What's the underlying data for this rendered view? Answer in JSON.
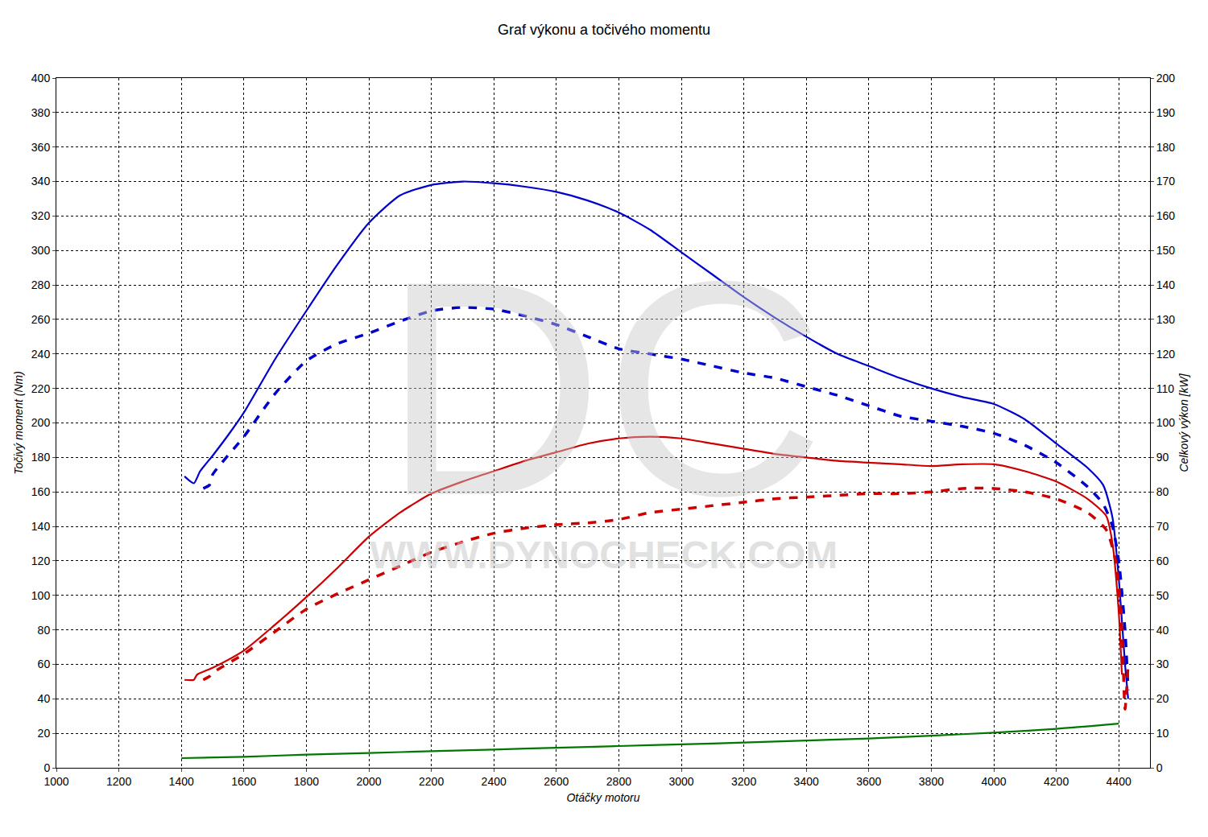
{
  "chart_data": {
    "type": "line",
    "title": "Graf výkonu a točivého momentu",
    "x_label": "Otáčky motoru",
    "y_label": "Točivý moment (Nm)",
    "y2_label": "Celkový výkon [kW]",
    "annotations": [
      "DC",
      "WWW.DYNOCHECK.COM"
    ],
    "xlim": [
      1000,
      4500
    ],
    "xticks": [
      1000,
      1200,
      1400,
      1600,
      1800,
      2000,
      2200,
      2400,
      2600,
      2800,
      3000,
      3200,
      3400,
      3600,
      3800,
      4000,
      4200,
      4400
    ],
    "ylim": [
      0,
      400
    ],
    "yticks": [
      0,
      20,
      40,
      60,
      80,
      100,
      120,
      140,
      160,
      180,
      200,
      220,
      240,
      260,
      280,
      300,
      320,
      340,
      360,
      380,
      400
    ],
    "y2lim": [
      0,
      200
    ],
    "y2ticks": [
      0,
      10,
      20,
      30,
      40,
      50,
      60,
      70,
      80,
      90,
      100,
      110,
      120,
      130,
      140,
      150,
      160,
      170,
      180,
      190,
      200
    ],
    "grid": true,
    "series": [
      {
        "color": "#0000cc",
        "line_style": "solid",
        "axis": "y",
        "x": [
          1410,
          1440,
          1460,
          1500,
          1550,
          1600,
          1700,
          1800,
          1900,
          2000,
          2100,
          2200,
          2300,
          2400,
          2500,
          2600,
          2700,
          2800,
          2900,
          3000,
          3100,
          3200,
          3300,
          3400,
          3500,
          3600,
          3700,
          3800,
          3900,
          4000,
          4100,
          4200,
          4300,
          4350,
          4380,
          4400,
          4420,
          4430
        ],
        "values": [
          169,
          165,
          172,
          181,
          193,
          206,
          237,
          265,
          292,
          316,
          332,
          338,
          340,
          339,
          337,
          334,
          329,
          322,
          312,
          299,
          286,
          273,
          261,
          250,
          240,
          233,
          226,
          220,
          215,
          211,
          202,
          188,
          174,
          164,
          145,
          110,
          60,
          40
        ]
      },
      {
        "color": "#0000cc",
        "line_style": "dashed",
        "axis": "y",
        "x": [
          1470,
          1490,
          1500,
          1600,
          1700,
          1800,
          1900,
          2000,
          2100,
          2200,
          2300,
          2400,
          2500,
          2600,
          2700,
          2800,
          2900,
          3000,
          3100,
          3200,
          3300,
          3400,
          3500,
          3600,
          3700,
          3800,
          3900,
          4000,
          4100,
          4200,
          4300,
          4350,
          4380,
          4400,
          4420,
          4430
        ],
        "values": [
          162,
          164,
          170,
          192,
          217,
          236,
          246,
          252,
          259,
          265,
          267,
          266,
          262,
          257,
          250,
          243,
          240,
          237,
          233,
          229,
          226,
          221,
          216,
          210,
          204,
          201,
          198,
          194,
          187,
          177,
          163,
          153,
          140,
          120,
          80,
          45
        ]
      },
      {
        "color": "#cc0000",
        "line_style": "solid",
        "axis": "y2",
        "x": [
          1410,
          1440,
          1450,
          1500,
          1600,
          1700,
          1800,
          1900,
          2000,
          2100,
          2200,
          2300,
          2400,
          2500,
          2600,
          2700,
          2800,
          2900,
          3000,
          3100,
          3200,
          3300,
          3400,
          3500,
          3600,
          3700,
          3800,
          3900,
          4000,
          4100,
          4200,
          4300,
          4360,
          4380,
          4400,
          4410
        ],
        "values": [
          25.5,
          25.5,
          27,
          29,
          34,
          41.5,
          49.5,
          58,
          67,
          74,
          79.5,
          83,
          86,
          89,
          91.5,
          94,
          95.5,
          96,
          95.5,
          94,
          92.5,
          91,
          90,
          89,
          88.5,
          88,
          87.5,
          88,
          88,
          86,
          83,
          78,
          73,
          65,
          45,
          27
        ]
      },
      {
        "color": "#cc0000",
        "line_style": "dashed",
        "axis": "y2",
        "x": [
          1470,
          1490,
          1500,
          1600,
          1700,
          1800,
          1900,
          2000,
          2100,
          2200,
          2300,
          2400,
          2500,
          2600,
          2700,
          2800,
          2900,
          3000,
          3100,
          3200,
          3300,
          3400,
          3500,
          3600,
          3700,
          3800,
          3900,
          4000,
          4100,
          4200,
          4300,
          4360,
          4390,
          4410,
          4420,
          4430
        ],
        "values": [
          25.5,
          26.5,
          27.5,
          33,
          39.5,
          46,
          50.5,
          54.5,
          58.5,
          62.5,
          65.5,
          68,
          69.5,
          70.5,
          71,
          72,
          74,
          75,
          76,
          77,
          78,
          78.5,
          79,
          79.5,
          79.5,
          80,
          81,
          81,
          80,
          78,
          74,
          69,
          60,
          40,
          17,
          30
        ]
      },
      {
        "color": "#007700",
        "line_style": "solid",
        "axis": "y2",
        "x": [
          1400,
          1600,
          1800,
          2000,
          2200,
          2400,
          2600,
          2800,
          3000,
          3200,
          3400,
          3600,
          3800,
          4000,
          4200,
          4400
        ],
        "values": [
          2.8,
          3.2,
          3.8,
          4.3,
          4.8,
          5.3,
          5.8,
          6.3,
          6.8,
          7.3,
          7.9,
          8.5,
          9.3,
          10.2,
          11.3,
          12.8
        ]
      }
    ]
  }
}
